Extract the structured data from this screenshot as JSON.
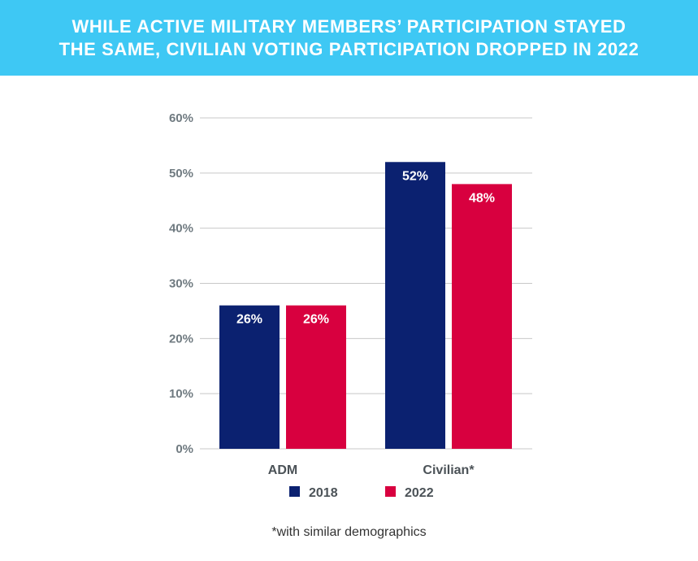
{
  "header": {
    "title_line1": "WHILE ACTIVE MILITARY MEMBERS’ PARTICIPATION STAYED",
    "title_line2": "THE SAME, CIVILIAN VOTING PARTICIPATION DROPPED IN 2022"
  },
  "footnote": "*with similar demographics",
  "colors": {
    "banner": "#3ec8f4",
    "2018": "#0b2170",
    "2022": "#d8003f"
  },
  "chart_data": {
    "type": "bar",
    "categories": [
      "ADM",
      "Civilian*"
    ],
    "series": [
      {
        "name": "2018",
        "values": [
          26,
          52
        ],
        "labels": [
          "26%",
          "52%"
        ]
      },
      {
        "name": "2022",
        "values": [
          26,
          48
        ],
        "labels": [
          "26%",
          "48%"
        ]
      }
    ],
    "ylim": [
      0,
      60
    ],
    "y_ticks": [
      0,
      10,
      20,
      30,
      40,
      50,
      60
    ],
    "y_tick_labels": [
      "0%",
      "10%",
      "20%",
      "30%",
      "40%",
      "50%",
      "60%"
    ],
    "grid": true,
    "legend": "bottom-center"
  }
}
